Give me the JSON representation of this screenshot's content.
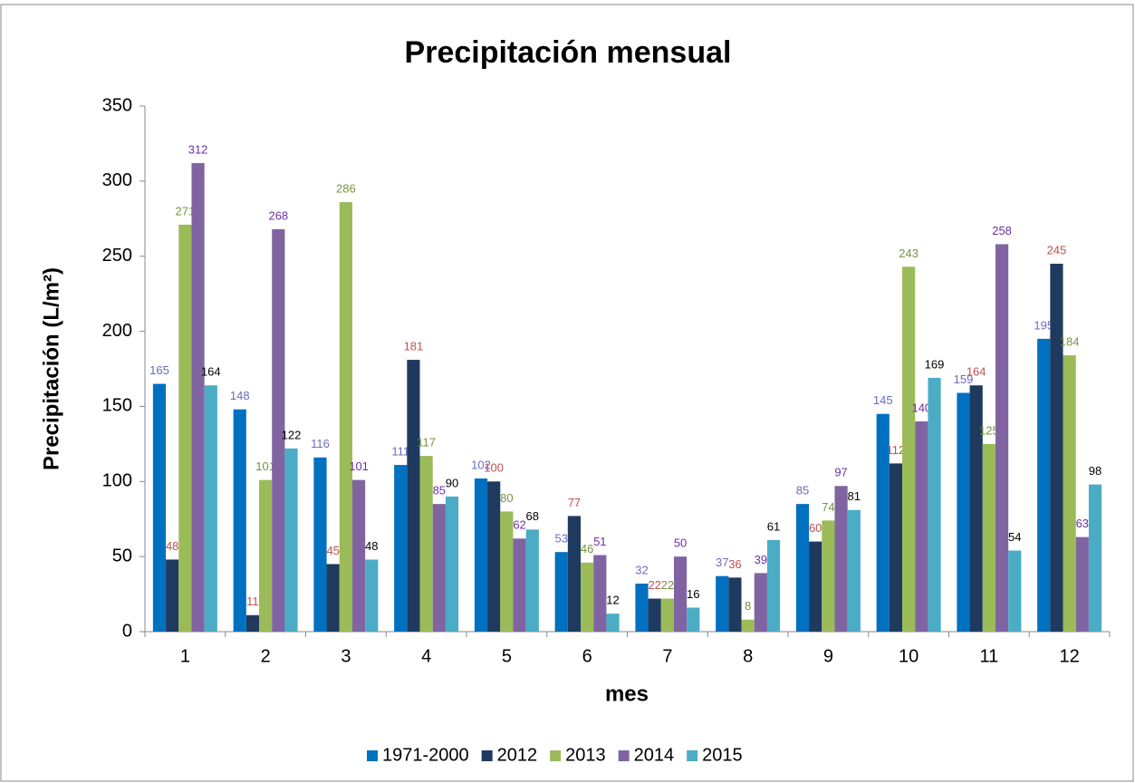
{
  "chart_data": {
    "type": "bar",
    "title": "Precipitación mensual",
    "x_label": "mes",
    "y_label": "Precipitación (L/m²)",
    "categories": [
      "1",
      "2",
      "3",
      "4",
      "5",
      "6",
      "7",
      "8",
      "9",
      "10",
      "11",
      "12"
    ],
    "series": [
      {
        "name": "1971-2000",
        "color": "#0070c0",
        "label_color": "#6b6bbf",
        "values": [
          165,
          148,
          116,
          111,
          102,
          53,
          32,
          37,
          85,
          145,
          159,
          195
        ]
      },
      {
        "name": "2012",
        "color": "#1f3a5f",
        "label_color": "#c0504d",
        "values": [
          48,
          11,
          45,
          181,
          100,
          77,
          22,
          36,
          60,
          112,
          164,
          245
        ]
      },
      {
        "name": "2013",
        "color": "#9bbb59",
        "label_color": "#77933c",
        "values": [
          271,
          101,
          286,
          117,
          80,
          46,
          22,
          8,
          74,
          243,
          125,
          184
        ]
      },
      {
        "name": "2014",
        "color": "#8064a2",
        "label_color": "#7030a0",
        "values": [
          312,
          268,
          101,
          85,
          62,
          51,
          50,
          39,
          97,
          140,
          258,
          63
        ]
      },
      {
        "name": "2015",
        "color": "#4bacc6",
        "label_color": "#000000",
        "values": [
          164,
          122,
          48,
          90,
          68,
          12,
          16,
          61,
          81,
          169,
          54,
          98
        ]
      }
    ],
    "ylim": [
      0,
      350
    ],
    "yticks": [
      0,
      50,
      100,
      150,
      200,
      250,
      300,
      350
    ],
    "grid": false,
    "legend": "bottom"
  }
}
